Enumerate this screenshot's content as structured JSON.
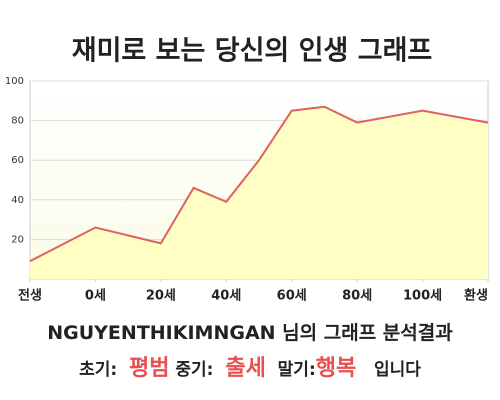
{
  "chart_data": {
    "type": "line",
    "title": "재미로 보는 당신의 인생 그래프",
    "x": [
      -20,
      0,
      20,
      30,
      40,
      50,
      60,
      70,
      80,
      100,
      120
    ],
    "values": [
      9,
      26,
      18,
      46,
      39,
      60,
      85,
      87,
      79,
      85,
      79
    ],
    "color": "#e06060",
    "fill": "#ffffc4",
    "xlim": [
      -20,
      120
    ],
    "xticks": [
      {
        "value": -20,
        "label": "전생"
      },
      {
        "value": 0,
        "label": "0세"
      },
      {
        "value": 20,
        "label": "20세"
      },
      {
        "value": 40,
        "label": "40세"
      },
      {
        "value": 60,
        "label": "60세"
      },
      {
        "value": 80,
        "label": "80세"
      },
      {
        "value": 100,
        "label": "100세"
      },
      {
        "value": 120,
        "label": "환생"
      }
    ],
    "ylim": [
      0,
      100
    ],
    "yticks": [
      20,
      40,
      60,
      80,
      100
    ],
    "grid": true
  },
  "result": {
    "name": "NGUYENTHIKIMNGAN",
    "heading": "님의 그래프 분석결과",
    "early_label": "초기:",
    "early": "평범",
    "middle_label": "중기:",
    "middle": "출세",
    "late_label": "말기:",
    "late": "행복",
    "ending": "입니다"
  }
}
